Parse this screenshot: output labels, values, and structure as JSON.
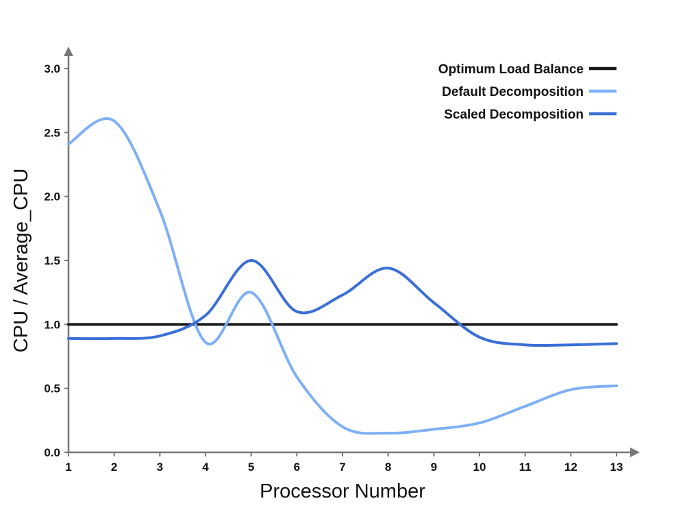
{
  "chart_data": {
    "type": "line",
    "xlabel": "Processor Number",
    "ylabel": "CPU / Average_CPU",
    "xlim": [
      1,
      13
    ],
    "ylim": [
      0,
      3.0
    ],
    "x_ticks": [
      1,
      2,
      3,
      4,
      5,
      6,
      7,
      8,
      9,
      10,
      11,
      12,
      13
    ],
    "y_ticks": [
      "0.0",
      "0.5",
      "1.0",
      "1.5",
      "2.0",
      "2.5",
      "3.0"
    ],
    "grid": false,
    "legend_position": "top-right",
    "series": [
      {
        "name": "Optimum Load Balance",
        "color": "#1a1a1a",
        "x": [
          1,
          13
        ],
        "y": [
          1.0,
          1.0
        ]
      },
      {
        "name": "Default Decomposition",
        "color": "#7fb0f5",
        "x": [
          1,
          2,
          3,
          4,
          5,
          6,
          7,
          8,
          9,
          10,
          11,
          12,
          13
        ],
        "y": [
          2.41,
          2.59,
          1.89,
          0.86,
          1.25,
          0.59,
          0.2,
          0.15,
          0.18,
          0.23,
          0.36,
          0.49,
          0.52
        ]
      },
      {
        "name": "Scaled Decomposition",
        "color": "#3a6fd8",
        "x": [
          1,
          2,
          3,
          4,
          5,
          6,
          7,
          8,
          9,
          10,
          11,
          12,
          13
        ],
        "y": [
          0.89,
          0.89,
          0.91,
          1.07,
          1.5,
          1.1,
          1.23,
          1.44,
          1.17,
          0.9,
          0.84,
          0.84,
          0.85
        ]
      }
    ]
  }
}
